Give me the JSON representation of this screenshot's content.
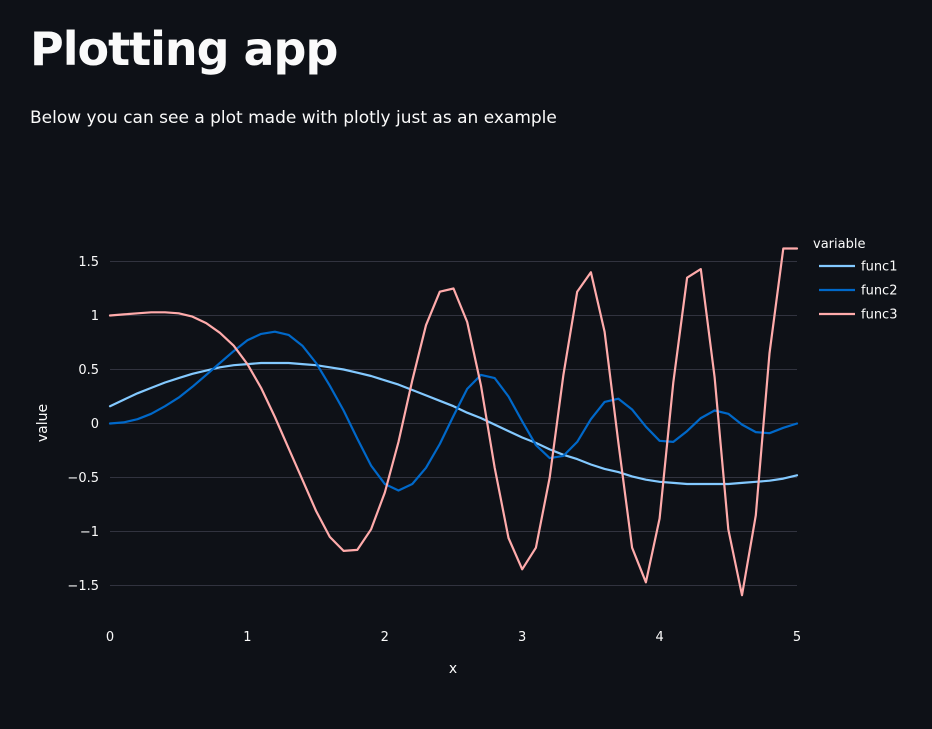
{
  "page": {
    "title": "Plotting app",
    "subtitle": "Below you can see a plot made with plotly just as an example"
  },
  "colors": {
    "background": "#0e1117",
    "text": "#fafafa",
    "grid": "#31333f"
  },
  "chart_data": {
    "type": "line",
    "title": "",
    "xlabel": "x",
    "ylabel": "value",
    "xlim": [
      0,
      5
    ],
    "ylim": [
      -1.75,
      1.75
    ],
    "x_ticks": [
      0,
      1,
      2,
      3,
      4,
      5
    ],
    "x_tick_labels": [
      "0",
      "1",
      "2",
      "3",
      "4",
      "5"
    ],
    "y_ticks": [
      1.5,
      1,
      0.5,
      0,
      -0.5,
      -1,
      -1.5
    ],
    "y_tick_labels": [
      "1.5",
      "1",
      "0.5",
      "0",
      "−0.5",
      "−1",
      "−1.5"
    ],
    "grid": true,
    "legend_title": "variable",
    "legend_position": "right",
    "x": [
      0,
      0.1,
      0.2,
      0.3,
      0.4,
      0.5,
      0.6,
      0.7,
      0.8,
      0.9,
      1.0,
      1.1,
      1.2,
      1.3,
      1.4,
      1.5,
      1.6,
      1.7,
      1.8,
      1.9,
      2.0,
      2.1,
      2.2,
      2.3,
      2.4,
      2.5,
      2.6,
      2.7,
      2.8,
      2.9,
      3.0,
      3.1,
      3.2,
      3.3,
      3.4,
      3.5,
      3.6,
      3.7,
      3.8,
      3.9,
      4.0,
      4.1,
      4.2,
      4.3,
      4.4,
      4.5,
      4.6,
      4.7,
      4.8,
      4.9,
      5.0
    ],
    "series": [
      {
        "name": "func1",
        "color": "#83c9ff",
        "values": [
          0.16,
          0.22,
          0.28,
          0.33,
          0.38,
          0.42,
          0.46,
          0.49,
          0.52,
          0.54,
          0.55,
          0.56,
          0.56,
          0.56,
          0.55,
          0.54,
          0.52,
          0.5,
          0.47,
          0.44,
          0.4,
          0.36,
          0.31,
          0.26,
          0.21,
          0.16,
          0.1,
          0.05,
          -0.01,
          -0.07,
          -0.13,
          -0.18,
          -0.24,
          -0.29,
          -0.33,
          -0.38,
          -0.42,
          -0.45,
          -0.49,
          -0.52,
          -0.54,
          -0.55,
          -0.56,
          -0.56,
          -0.56,
          -0.56,
          -0.55,
          -0.54,
          -0.53,
          -0.51,
          -0.48
        ]
      },
      {
        "name": "func2",
        "color": "#0068c9",
        "values": [
          0.0,
          0.01,
          0.04,
          0.09,
          0.16,
          0.24,
          0.34,
          0.45,
          0.56,
          0.67,
          0.77,
          0.83,
          0.85,
          0.82,
          0.72,
          0.56,
          0.35,
          0.12,
          -0.14,
          -0.39,
          -0.56,
          -0.62,
          -0.56,
          -0.41,
          -0.19,
          0.07,
          0.32,
          0.45,
          0.42,
          0.25,
          0.02,
          -0.2,
          -0.32,
          -0.3,
          -0.17,
          0.04,
          0.2,
          0.23,
          0.13,
          -0.03,
          -0.16,
          -0.17,
          -0.07,
          0.05,
          0.12,
          0.09,
          -0.01,
          -0.08,
          -0.09,
          -0.04,
          0.0
        ]
      },
      {
        "name": "func3",
        "color": "#ffabab",
        "values": [
          1.0,
          1.01,
          1.02,
          1.03,
          1.03,
          1.02,
          0.99,
          0.93,
          0.84,
          0.72,
          0.55,
          0.33,
          0.06,
          -0.23,
          -0.52,
          -0.81,
          -1.05,
          -1.18,
          -1.17,
          -0.98,
          -0.64,
          -0.17,
          0.4,
          0.91,
          1.22,
          1.25,
          0.94,
          0.35,
          -0.41,
          -1.06,
          -1.35,
          -1.15,
          -0.5,
          0.45,
          1.22,
          1.4,
          0.85,
          -0.18,
          -1.15,
          -1.47,
          -0.88,
          0.38,
          1.35,
          1.43,
          0.43,
          -0.98,
          -1.59,
          -0.85,
          0.65,
          1.62,
          1.62
        ]
      }
    ]
  }
}
